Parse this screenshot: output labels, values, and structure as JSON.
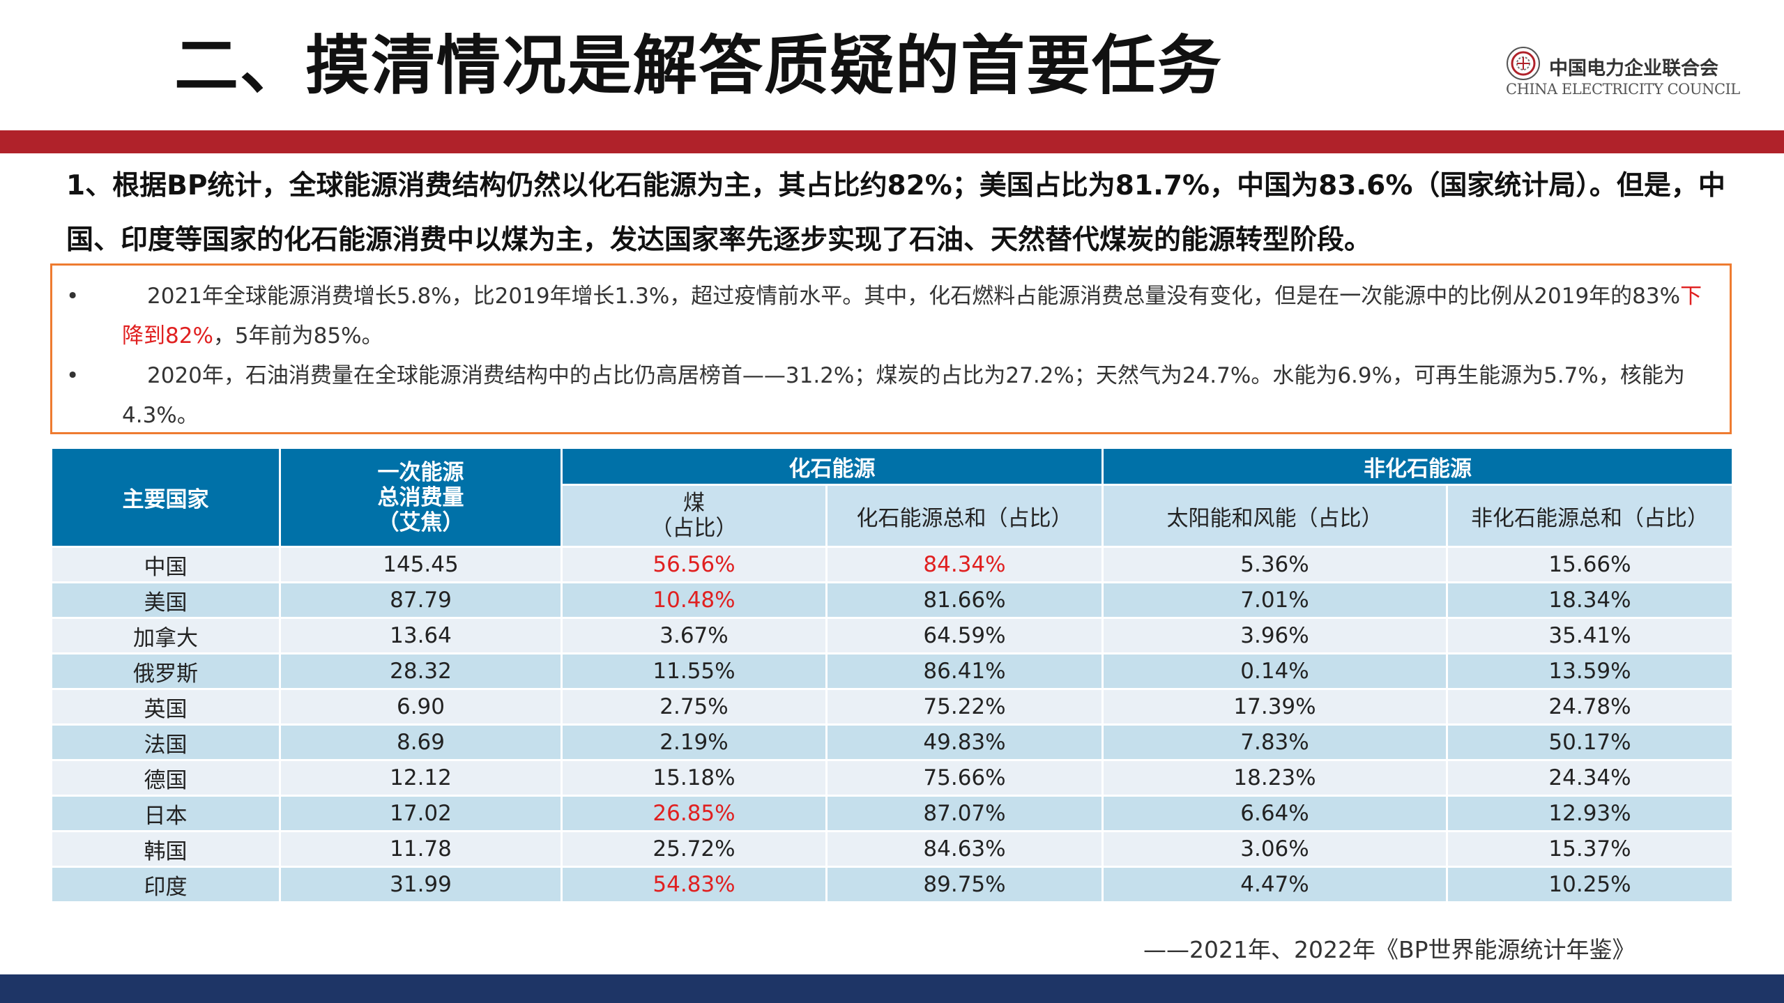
{
  "slide": {
    "title": "二、摸清情况是解答质疑的首要任务"
  },
  "logo": {
    "emblem": "china-electricity-council-emblem",
    "name_cn": "中国电力企业联合会",
    "name_en": "CHINA ELECTRICITY COUNCIL"
  },
  "intro": {
    "text": "1、根据BP统计，全球能源消费结构仍然以化石能源为主，其占比约82%；美国占比为81.7%，中国为83.6%（国家统计局）。但是，中国、印度等国家的化石能源消费中以煤为主，发达国家率先逐步实现了石油、天然替代煤炭的能源转型阶段。"
  },
  "notes": {
    "bullet": "•",
    "note1_before": "2021年全球能源消费增长5.8%，比2019年增长1.3%，超过疫情前水平。其中，化石燃料占能源消费总量没有变化，但是在一次能源中的比例从2019年的83%",
    "note1_highlight": "下降到82%",
    "note1_after": "，5年前为85%。",
    "note2": "2020年，石油消费量在全球能源消费结构中的占比仍高居榜首——31.2%；煤炭的占比为27.2%；天然气为24.7%。水能为6.9%，可再生能源为5.7%，核能为4.3%。"
  },
  "table": {
    "headers": {
      "country": "主要国家",
      "primary_energy": "一次能源\n总消费量\n（艾焦）",
      "fossil_group": "化石能源",
      "non_fossil_group": "非化石能源",
      "coal": "煤\n（占比）",
      "fossil_total": "化石能源总和（占比）",
      "solar_wind": "太阳能和风能（占比）",
      "non_fossil_total": "非化石能源总和（占比）"
    },
    "highlight_color": "#e02020",
    "rows": [
      {
        "country": "中国",
        "primary": "145.45",
        "coal": "56.56%",
        "fossil": "84.34%",
        "solar_wind": "5.36%",
        "non_fossil": "15.66%"
      },
      {
        "country": "美国",
        "primary": "87.79",
        "coal": "10.48%",
        "fossil": "81.66%",
        "solar_wind": "7.01%",
        "non_fossil": "18.34%"
      },
      {
        "country": "加拿大",
        "primary": "13.64",
        "coal": "3.67%",
        "fossil": "64.59%",
        "solar_wind": "3.96%",
        "non_fossil": "35.41%"
      },
      {
        "country": "俄罗斯",
        "primary": "28.32",
        "coal": "11.55%",
        "fossil": "86.41%",
        "solar_wind": "0.14%",
        "non_fossil": "13.59%"
      },
      {
        "country": "英国",
        "primary": "6.90",
        "coal": "2.75%",
        "fossil": "75.22%",
        "solar_wind": "17.39%",
        "non_fossil": "24.78%"
      },
      {
        "country": "法国",
        "primary": "8.69",
        "coal": "2.19%",
        "fossil": "49.83%",
        "solar_wind": "7.83%",
        "non_fossil": "50.17%"
      },
      {
        "country": "德国",
        "primary": "12.12",
        "coal": "15.18%",
        "fossil": "75.66%",
        "solar_wind": "18.23%",
        "non_fossil": "24.34%"
      },
      {
        "country": "日本",
        "primary": "17.02",
        "coal": "26.85%",
        "fossil": "87.07%",
        "solar_wind": "6.64%",
        "non_fossil": "12.93%"
      },
      {
        "country": "韩国",
        "primary": "11.78",
        "coal": "25.72%",
        "fossil": "84.63%",
        "solar_wind": "3.06%",
        "non_fossil": "15.37%"
      },
      {
        "country": "印度",
        "primary": "31.99",
        "coal": "54.83%",
        "fossil": "89.75%",
        "solar_wind": "4.47%",
        "non_fossil": "10.25%"
      }
    ]
  },
  "source": "——2021年、2022年《BP世界能源统计年鉴》"
}
